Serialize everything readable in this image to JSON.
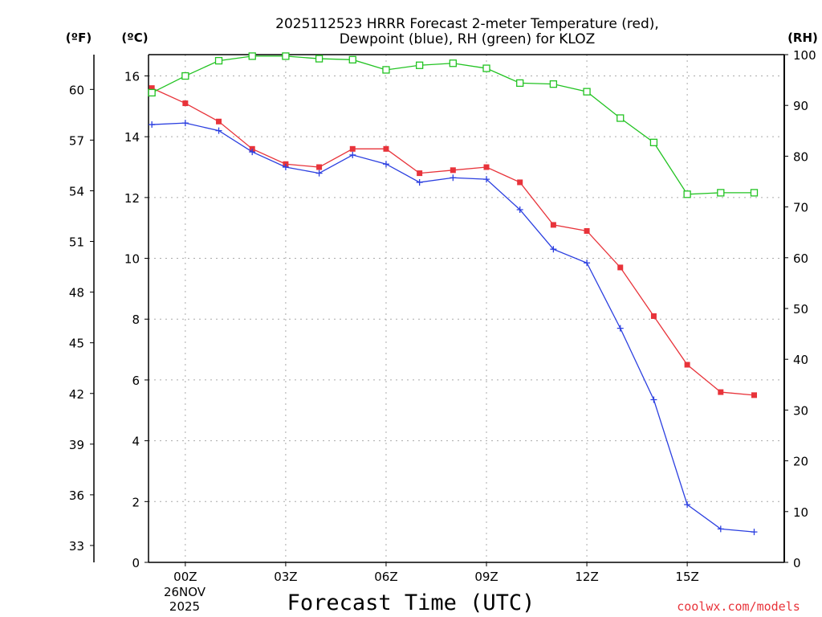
{
  "chart_data": {
    "type": "line",
    "title": "2025112523 HRRR Forecast 2-meter Temperature (red),",
    "subtitle": "Dewpoint (blue), RH (green) for KLOZ",
    "xlabel": "Forecast Time (UTC)",
    "left_axis_unit": "(ºF)",
    "celsius_axis_unit": "(ºC)",
    "right_axis_unit": "(RH)",
    "credit": "coolwx.com/models",
    "date_line1": "26NOV",
    "date_line2": "2025",
    "xlim": [
      -1.1,
      17.9
    ],
    "ylim_c": [
      0,
      16.7
    ],
    "ylim_rh": [
      0,
      100
    ],
    "x_ticks": [
      {
        "x": 0,
        "label": "00Z"
      },
      {
        "x": 3,
        "label": "03Z"
      },
      {
        "x": 6,
        "label": "06Z"
      },
      {
        "x": 9,
        "label": "09Z"
      },
      {
        "x": 12,
        "label": "12Z"
      },
      {
        "x": 15,
        "label": "15Z"
      }
    ],
    "celsius_ticks": [
      "0",
      "2",
      "4",
      "6",
      "8",
      "10",
      "12",
      "14",
      "16"
    ],
    "fahrenheit_ticks": [
      "33",
      "36",
      "39",
      "42",
      "45",
      "48",
      "51",
      "54",
      "57",
      "60"
    ],
    "rh_ticks": [
      "0",
      "10",
      "20",
      "30",
      "40",
      "50",
      "60",
      "70",
      "80",
      "90",
      "100"
    ],
    "x": [
      -1,
      0,
      1,
      2,
      3,
      4,
      5,
      6,
      7,
      8,
      9,
      10,
      11,
      12,
      13,
      14,
      15,
      16,
      17
    ],
    "series": [
      {
        "name": "Temperature",
        "axis": "celsius",
        "color": "#e8333a",
        "marker": "filled-square",
        "values": [
          15.6,
          15.1,
          14.5,
          13.6,
          13.1,
          13.0,
          13.6,
          13.6,
          12.8,
          12.9,
          13.0,
          12.5,
          11.1,
          10.9,
          9.7,
          8.1,
          6.5,
          5.6,
          5.5
        ]
      },
      {
        "name": "Dewpoint",
        "axis": "celsius",
        "color": "#2b3fe0",
        "marker": "plus",
        "values": [
          14.4,
          14.45,
          14.2,
          13.5,
          13.0,
          12.8,
          13.4,
          13.1,
          12.5,
          12.65,
          12.6,
          11.6,
          10.3,
          9.85,
          7.7,
          5.35,
          1.9,
          1.1,
          1.0
        ]
      },
      {
        "name": "RH",
        "axis": "rh",
        "color": "#22c322",
        "marker": "open-square",
        "values": [
          92.5,
          95.8,
          98.8,
          99.7,
          99.7,
          99.2,
          99.0,
          97.0,
          97.9,
          98.3,
          97.3,
          94.4,
          94.2,
          92.7,
          87.5,
          82.7,
          72.5,
          72.8,
          72.8
        ]
      }
    ]
  }
}
